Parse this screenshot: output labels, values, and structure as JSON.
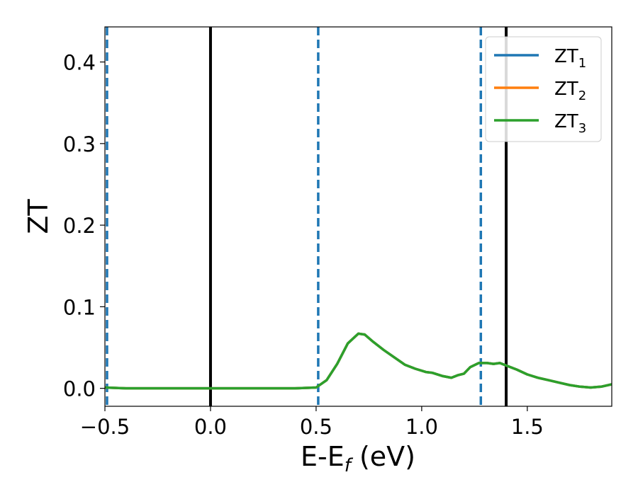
{
  "chart_data": {
    "type": "line",
    "xlabel": "E-E",
    "xlabel_sub": "f",
    "xlabel_unit": " (eV)",
    "ylabel": "ZT",
    "xlim": [
      -0.5,
      1.9
    ],
    "ylim": [
      -0.022,
      0.443
    ],
    "x_ticks": [
      -0.5,
      0.0,
      0.5,
      1.0,
      1.5
    ],
    "x_tick_labels": [
      "−0.5",
      "0.0",
      "0.5",
      "1.0",
      "1.5"
    ],
    "y_ticks": [
      0.0,
      0.1,
      0.2,
      0.3,
      0.4
    ],
    "y_tick_labels": [
      "0.0",
      "0.1",
      "0.2",
      "0.3",
      "0.4"
    ],
    "grid": false,
    "legend_position": "top-right",
    "vertical_lines": [
      {
        "x": -0.49,
        "style": "dashed",
        "color": "#1f77b4"
      },
      {
        "x": 0.0,
        "style": "solid",
        "color": "#000000"
      },
      {
        "x": 0.51,
        "style": "dashed",
        "color": "#1f77b4"
      },
      {
        "x": 1.28,
        "style": "dashed",
        "color": "#1f77b4"
      },
      {
        "x": 1.4,
        "style": "solid",
        "color": "#000000"
      }
    ],
    "series": [
      {
        "name": "ZT",
        "subscript": "1",
        "color": "#1f77b4",
        "x": [
          -0.5,
          -0.4,
          -0.2,
          0.0,
          0.2,
          0.4,
          0.5,
          0.55,
          0.6,
          0.65,
          0.7,
          0.73,
          0.77,
          0.82,
          0.87,
          0.92,
          0.97,
          1.02,
          1.05,
          1.1,
          1.14,
          1.17,
          1.2,
          1.23,
          1.27,
          1.31,
          1.34,
          1.37,
          1.4,
          1.45,
          1.5,
          1.55,
          1.6,
          1.65,
          1.7,
          1.75,
          1.8,
          1.85,
          1.9
        ],
        "y": [
          0.001,
          0.0,
          0.0,
          0.0,
          0.0,
          0.0,
          0.001,
          0.01,
          0.03,
          0.055,
          0.067,
          0.066,
          0.057,
          0.047,
          0.038,
          0.029,
          0.024,
          0.02,
          0.019,
          0.015,
          0.013,
          0.016,
          0.018,
          0.026,
          0.031,
          0.031,
          0.03,
          0.031,
          0.028,
          0.023,
          0.017,
          0.013,
          0.01,
          0.007,
          0.004,
          0.002,
          0.001,
          0.002,
          0.005
        ]
      },
      {
        "name": "ZT",
        "subscript": "2",
        "color": "#ff7f0e",
        "x": [
          -0.5,
          -0.4,
          -0.2,
          0.0,
          0.2,
          0.4,
          0.5,
          0.55,
          0.6,
          0.65,
          0.7,
          0.73,
          0.77,
          0.82,
          0.87,
          0.92,
          0.97,
          1.02,
          1.05,
          1.1,
          1.14,
          1.17,
          1.2,
          1.23,
          1.27,
          1.31,
          1.34,
          1.37,
          1.4,
          1.45,
          1.5,
          1.55,
          1.6,
          1.65,
          1.7,
          1.75,
          1.8,
          1.85,
          1.9
        ],
        "y": [
          0.001,
          0.0,
          0.0,
          0.0,
          0.0,
          0.0,
          0.001,
          0.01,
          0.03,
          0.055,
          0.067,
          0.066,
          0.057,
          0.047,
          0.038,
          0.029,
          0.024,
          0.02,
          0.019,
          0.015,
          0.013,
          0.016,
          0.018,
          0.026,
          0.031,
          0.031,
          0.03,
          0.031,
          0.028,
          0.023,
          0.017,
          0.013,
          0.01,
          0.007,
          0.004,
          0.002,
          0.001,
          0.002,
          0.005
        ]
      },
      {
        "name": "ZT",
        "subscript": "3",
        "color": "#2ca02c",
        "x": [
          -0.5,
          -0.4,
          -0.2,
          0.0,
          0.2,
          0.4,
          0.5,
          0.55,
          0.6,
          0.65,
          0.7,
          0.73,
          0.77,
          0.82,
          0.87,
          0.92,
          0.97,
          1.02,
          1.05,
          1.1,
          1.14,
          1.17,
          1.2,
          1.23,
          1.27,
          1.31,
          1.34,
          1.37,
          1.4,
          1.45,
          1.5,
          1.55,
          1.6,
          1.65,
          1.7,
          1.75,
          1.8,
          1.85,
          1.9
        ],
        "y": [
          0.001,
          0.0,
          0.0,
          0.0,
          0.0,
          0.0,
          0.001,
          0.01,
          0.03,
          0.055,
          0.067,
          0.066,
          0.057,
          0.047,
          0.038,
          0.029,
          0.024,
          0.02,
          0.019,
          0.015,
          0.013,
          0.016,
          0.018,
          0.026,
          0.031,
          0.031,
          0.03,
          0.031,
          0.028,
          0.023,
          0.017,
          0.013,
          0.01,
          0.007,
          0.004,
          0.002,
          0.001,
          0.002,
          0.005
        ]
      }
    ]
  }
}
